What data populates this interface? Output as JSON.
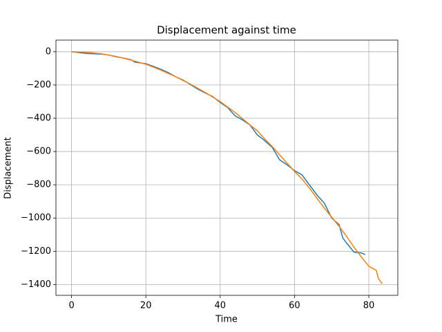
{
  "chart_data": {
    "type": "line",
    "title": "Displacement against time",
    "xlabel": "Time",
    "ylabel": "Displacement",
    "xlim": [
      -4.2,
      87.8
    ],
    "ylim": [
      -1465,
      70
    ],
    "xticks": [
      0,
      20,
      40,
      60,
      80
    ],
    "yticks": [
      {
        "value": -1400,
        "label": "−1400"
      },
      {
        "value": -1200,
        "label": "−1200"
      },
      {
        "value": -1000,
        "label": "−1000"
      },
      {
        "value": -800,
        "label": "−800"
      },
      {
        "value": -600,
        "label": "−600"
      },
      {
        "value": -400,
        "label": "−400"
      },
      {
        "value": -200,
        "label": "−200"
      },
      0
    ],
    "grid": true,
    "series": [
      {
        "color": "#1f77b4",
        "x": [
          0,
          2,
          4,
          6,
          8,
          10,
          12,
          14,
          16,
          17,
          20,
          22,
          24,
          26,
          28,
          30,
          32,
          34,
          36,
          38,
          40,
          42,
          44,
          46,
          48,
          50,
          52,
          54,
          56,
          58,
          60,
          62,
          64,
          66,
          68,
          70,
          72,
          73,
          74,
          76,
          78,
          79
        ],
        "values": [
          0,
          -5,
          -10,
          -12,
          -14,
          -20,
          -30,
          -38,
          -48,
          -62,
          -72,
          -88,
          -105,
          -125,
          -150,
          -170,
          -198,
          -225,
          -248,
          -270,
          -305,
          -335,
          -385,
          -410,
          -440,
          -500,
          -535,
          -575,
          -650,
          -680,
          -715,
          -740,
          -800,
          -860,
          -910,
          -1000,
          -1040,
          -1120,
          -1150,
          -1205,
          -1210,
          -1220
        ]
      },
      {
        "color": "#ff7f0e",
        "x": [
          0,
          4,
          8,
          12,
          16,
          20,
          24,
          28,
          32,
          36,
          40,
          44,
          48,
          50,
          52,
          54,
          56,
          58,
          60,
          62,
          64,
          66,
          68,
          70,
          72,
          74,
          76,
          78,
          80,
          82,
          82.6,
          83.6
        ],
        "values": [
          0,
          -3,
          -12,
          -28,
          -50,
          -75,
          -110,
          -150,
          -195,
          -245,
          -300,
          -365,
          -440,
          -475,
          -525,
          -570,
          -620,
          -670,
          -720,
          -765,
          -820,
          -880,
          -940,
          -995,
          -1050,
          -1110,
          -1175,
          -1235,
          -1290,
          -1315,
          -1365,
          -1395
        ]
      }
    ]
  }
}
